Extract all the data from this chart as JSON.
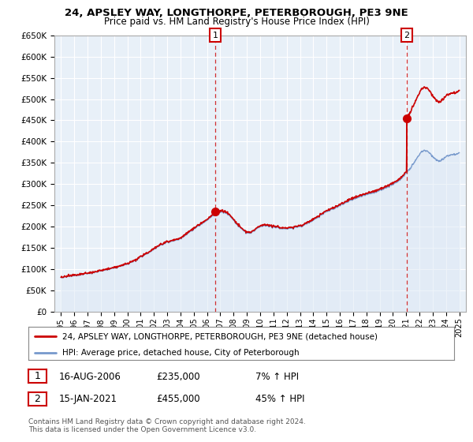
{
  "title_line1": "24, APSLEY WAY, LONGTHORPE, PETERBOROUGH, PE3 9NE",
  "title_line2": "Price paid vs. HM Land Registry's House Price Index (HPI)",
  "ylim": [
    0,
    650000
  ],
  "yticks": [
    0,
    50000,
    100000,
    150000,
    200000,
    250000,
    300000,
    350000,
    400000,
    450000,
    500000,
    550000,
    600000,
    650000
  ],
  "ytick_labels": [
    "£0",
    "£50K",
    "£100K",
    "£150K",
    "£200K",
    "£250K",
    "£300K",
    "£350K",
    "£400K",
    "£450K",
    "£500K",
    "£550K",
    "£600K",
    "£650K"
  ],
  "sale1_date": 2006.625,
  "sale1_price": 235000,
  "sale2_date": 2021.04,
  "sale2_price": 455000,
  "legend_line1": "24, APSLEY WAY, LONGTHORPE, PETERBOROUGH, PE3 9NE (detached house)",
  "legend_line2": "HPI: Average price, detached house, City of Peterborough",
  "footer_line1": "Contains HM Land Registry data © Crown copyright and database right 2024.",
  "footer_line2": "This data is licensed under the Open Government Licence v3.0.",
  "table_row1_num": "1",
  "table_row1_date": "16-AUG-2006",
  "table_row1_price": "£235,000",
  "table_row1_hpi": "7% ↑ HPI",
  "table_row2_num": "2",
  "table_row2_date": "15-JAN-2021",
  "table_row2_price": "£455,000",
  "table_row2_hpi": "45% ↑ HPI",
  "sale_color": "#cc0000",
  "hpi_color": "#7799cc",
  "hpi_fill_color": "#dde8f5",
  "dashed_color": "#cc0000",
  "chart_bg_color": "#e8f0f8",
  "background_color": "#ffffff",
  "grid_color": "#ffffff"
}
